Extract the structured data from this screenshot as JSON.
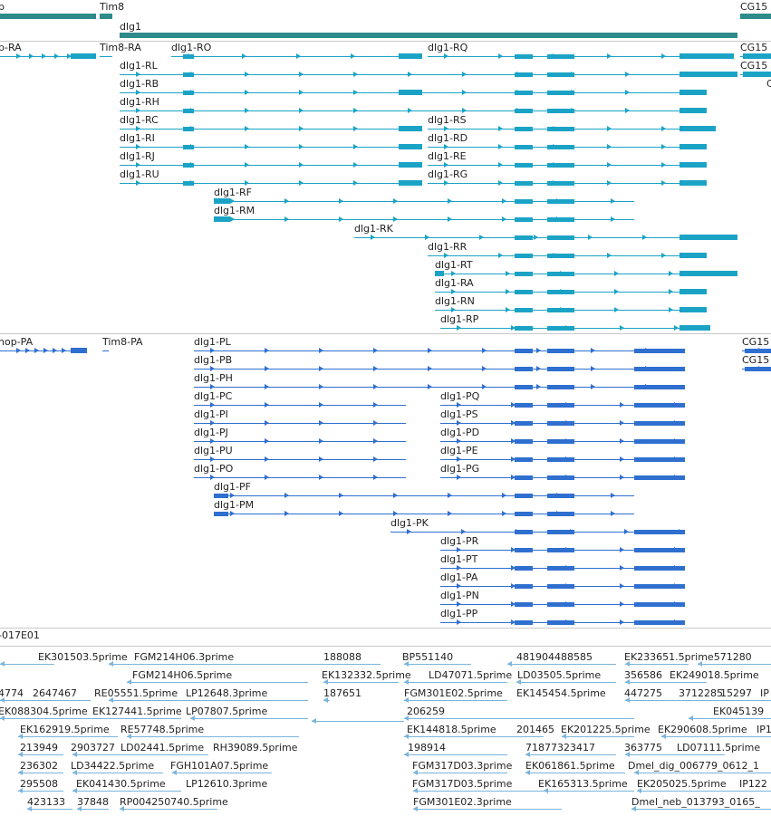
{
  "colors": {
    "gene": "#2e8b8b",
    "mrna": "#1ba3c6",
    "protein": "#2f6fcf",
    "est": "#7ab4dc"
  },
  "genes": [
    {
      "label": "p",
      "bar": true
    },
    {
      "label": "Tim8",
      "bar": true
    },
    {
      "label": "dlg1",
      "bar": true
    },
    {
      "label": "CG15",
      "bar": true
    }
  ],
  "mrnas": [
    {
      "label": "p-RA"
    },
    {
      "label": "Tim8-RA"
    },
    {
      "label": "dlg1-RO"
    },
    {
      "label": "dlg1-RQ"
    },
    {
      "label": "CG15"
    },
    {
      "label": "dlg1-RL"
    },
    {
      "label": "CG15"
    },
    {
      "label": "dlg1-RB"
    },
    {
      "label": "C"
    },
    {
      "label": "dlg1-RH"
    },
    {
      "label": "dlg1-RC"
    },
    {
      "label": "dlg1-RS"
    },
    {
      "label": "dlg1-RI"
    },
    {
      "label": "dlg1-RD"
    },
    {
      "label": "dlg1-RJ"
    },
    {
      "label": "dlg1-RE"
    },
    {
      "label": "dlg1-RU"
    },
    {
      "label": "dlg1-RG"
    },
    {
      "label": "dlg1-RF"
    },
    {
      "label": "dlg1-RM"
    },
    {
      "label": "dlg1-RK"
    },
    {
      "label": "dlg1-RR"
    },
    {
      "label": "dlg1-RT"
    },
    {
      "label": "dlg1-RA"
    },
    {
      "label": "dlg1-RN"
    },
    {
      "label": "dlg1-RP"
    }
  ],
  "proteins": [
    {
      "label": "nop-PA"
    },
    {
      "label": "Tim8-PA"
    },
    {
      "label": "dlg1-PL"
    },
    {
      "label": "CG15"
    },
    {
      "label": "dlg1-PB"
    },
    {
      "label": "CG15"
    },
    {
      "label": "dlg1-PH"
    },
    {
      "label": "dlg1-PC"
    },
    {
      "label": "dlg1-PQ"
    },
    {
      "label": "dlg1-PI"
    },
    {
      "label": "dlg1-PS"
    },
    {
      "label": "dlg1-PJ"
    },
    {
      "label": "dlg1-PD"
    },
    {
      "label": "dlg1-PU"
    },
    {
      "label": "dlg1-PE"
    },
    {
      "label": "dlg1-PO"
    },
    {
      "label": "dlg1-PG"
    },
    {
      "label": "dlg1-PF"
    },
    {
      "label": "dlg1-PM"
    },
    {
      "label": "dlg1-PK"
    },
    {
      "label": "dlg1-PR"
    },
    {
      "label": "dlg1-PT"
    },
    {
      "label": "dlg1-PA"
    },
    {
      "label": "dlg1-PN"
    },
    {
      "label": "dlg1-PP"
    }
  ],
  "clone_label": "-017E01",
  "ests": [
    {
      "label": "EK301503.5prime"
    },
    {
      "label": "FGM214H06.3prime"
    },
    {
      "label": "188088"
    },
    {
      "label": "BP551140"
    },
    {
      "label": "481904488585"
    },
    {
      "label": "EK233651.5prime571280"
    },
    {
      "label": "FGM214H06.5prime"
    },
    {
      "label": "EK132332.5prime"
    },
    {
      "label": "LD47071.5prime"
    },
    {
      "label": "LD03505.5prime"
    },
    {
      "label": "356586"
    },
    {
      "label": "EK249018.5prime"
    },
    {
      "label": "4774"
    },
    {
      "label": "2647467"
    },
    {
      "label": "RE05551.5prime"
    },
    {
      "label": "LP12648.3prime"
    },
    {
      "label": "187651"
    },
    {
      "label": "FGM301E02.5prime"
    },
    {
      "label": "EK145454.5prime"
    },
    {
      "label": "447275"
    },
    {
      "label": "3712285"
    },
    {
      "label": "15297"
    },
    {
      "label": "IP"
    },
    {
      "label": "EK088304.5prime"
    },
    {
      "label": "EK127441.5prime"
    },
    {
      "label": "LP07807.5prime"
    },
    {
      "label": "206259"
    },
    {
      "label": "EK045139"
    },
    {
      "label": "EK162919.5prime"
    },
    {
      "label": "RE57748.5prime"
    },
    {
      "label": "EK144818.5prime"
    },
    {
      "label": "201465"
    },
    {
      "label": "EK201225.5prime"
    },
    {
      "label": "EK290608.5prime"
    },
    {
      "label": "IP1"
    },
    {
      "label": "213949"
    },
    {
      "label": "2903727"
    },
    {
      "label": "LD02441.5prime"
    },
    {
      "label": "RH39089.5prime"
    },
    {
      "label": "198914"
    },
    {
      "label": "71877323417"
    },
    {
      "label": "363775"
    },
    {
      "label": "LD07111.5prime"
    },
    {
      "label": "236302"
    },
    {
      "label": "LD34422.5prime"
    },
    {
      "label": "FGH101A07.5prime"
    },
    {
      "label": "FGM317D03.3prime"
    },
    {
      "label": "EK061861.5prime"
    },
    {
      "label": "Dmel_dig_006779_0612_1"
    },
    {
      "label": "295508"
    },
    {
      "label": "EK041430.5prime"
    },
    {
      "label": "LP12610.3prime"
    },
    {
      "label": "FGM317D03.5prime"
    },
    {
      "label": "EK165313.5prime"
    },
    {
      "label": "EK205025.5prime"
    },
    {
      "label": "IP122"
    },
    {
      "label": "423133"
    },
    {
      "label": "37848"
    },
    {
      "label": "RP004250740.5prime"
    },
    {
      "label": "FGM301E02.3prime"
    },
    {
      "label": "Dmel_neb_013793_0165_"
    }
  ]
}
